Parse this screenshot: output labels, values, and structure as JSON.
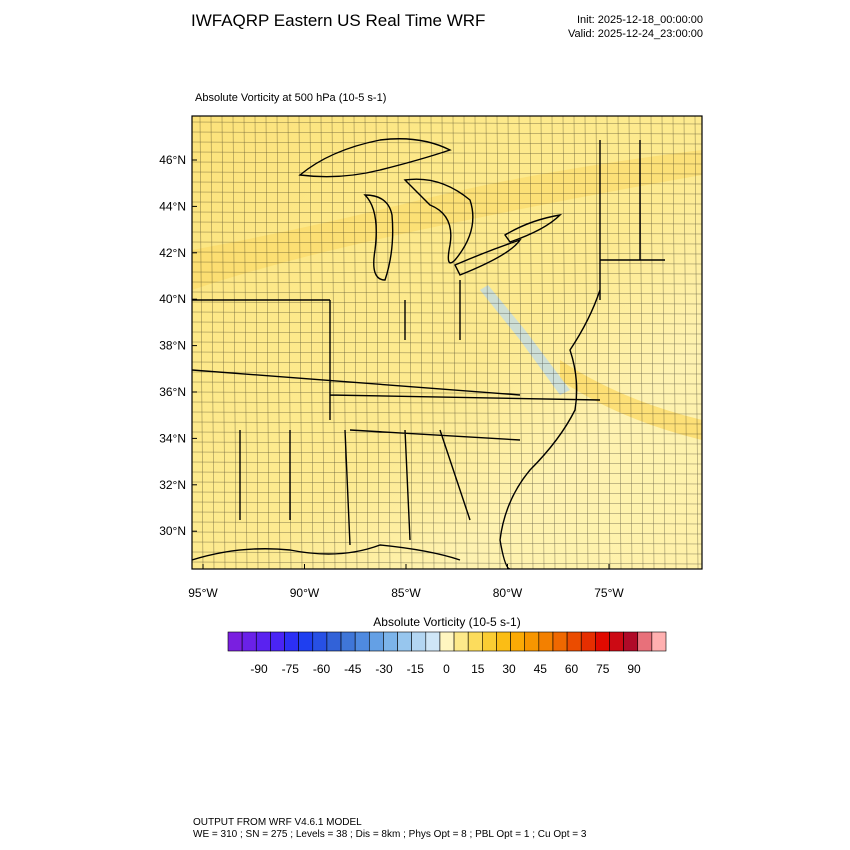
{
  "header": {
    "title": "IWFAQRP Eastern US Real Time WRF",
    "init": "Init: 2025-12-18_00:00:00",
    "valid": "Valid: 2025-12-24_23:00:00"
  },
  "map": {
    "subtitle": "Absolute Vorticity at 500 hPa   (10-5 s-1)",
    "lat_labels": [
      "46°N",
      "44°N",
      "42°N",
      "40°N",
      "38°N",
      "36°N",
      "34°N",
      "32°N",
      "30°N"
    ],
    "lon_labels": [
      "95°W",
      "90°W",
      "85°W",
      "80°W",
      "75°W"
    ]
  },
  "colorbar": {
    "title": "Absolute Vorticity  (10-5 s-1)",
    "labels": [
      -90,
      -75,
      -60,
      -45,
      -30,
      -15,
      0,
      15,
      30,
      45,
      60,
      75,
      90
    ],
    "colors": [
      "#7a1fe0",
      "#6a21e8",
      "#5a22f0",
      "#4a24f5",
      "#2c2ff5",
      "#1f3ff0",
      "#2750e5",
      "#3262d8",
      "#3f76d8",
      "#4f8ae0",
      "#64a0e5",
      "#7cb4ea",
      "#97c6ee",
      "#b3d6f2",
      "#cfe6f7",
      "#fff6c0",
      "#fde98a",
      "#fcdc5c",
      "#fbcd33",
      "#fbbd15",
      "#fbaa05",
      "#f79600",
      "#f38000",
      "#ef6800",
      "#eb4c00",
      "#e62e00",
      "#e00a00",
      "#cc0a14",
      "#b00a28",
      "#e8707a",
      "#ffb0b0"
    ]
  },
  "footer": {
    "line1": "OUTPUT FROM WRF V4.6.1 MODEL",
    "line2": "WE = 310 ; SN = 275 ; Levels = 38 ; Dis = 8km ; Phys Opt = 8 ; PBL Opt = 1 ; Cu Opt = 3"
  }
}
